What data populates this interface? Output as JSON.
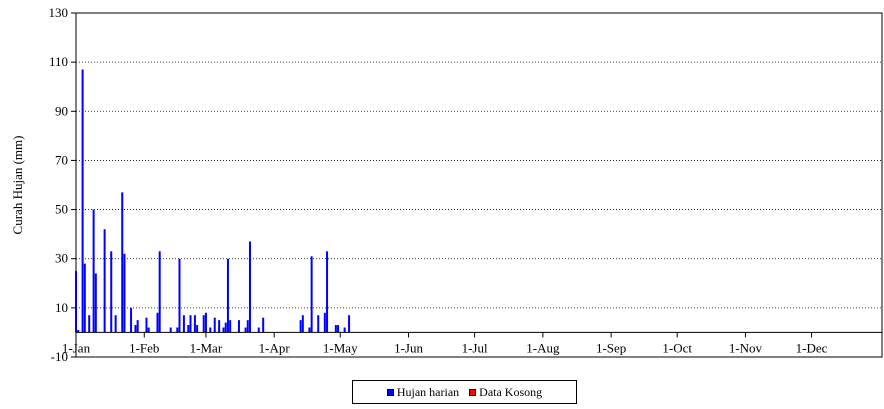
{
  "chart_data": {
    "type": "bar",
    "title": "",
    "xlabel": "",
    "ylabel": "Curah Hujan (mm)",
    "ylim": [
      -10,
      130
    ],
    "yticks": [
      -10,
      10,
      30,
      50,
      70,
      90,
      110,
      130
    ],
    "xlim_days": [
      1,
      366
    ],
    "xticks": [
      {
        "label": "1-Jan",
        "day": 1
      },
      {
        "label": "1-Feb",
        "day": 32
      },
      {
        "label": "1-Mar",
        "day": 60
      },
      {
        "label": "1-Apr",
        "day": 91
      },
      {
        "label": "1-May",
        "day": 121
      },
      {
        "label": "1-Jun",
        "day": 152
      },
      {
        "label": "1-Jul",
        "day": 182
      },
      {
        "label": "1-Aug",
        "day": 213
      },
      {
        "label": "1-Sep",
        "day": 244
      },
      {
        "label": "1-Oct",
        "day": 274
      },
      {
        "label": "1-Nov",
        "day": 305
      },
      {
        "label": "1-Dec",
        "day": 335
      }
    ],
    "grid": "horizontal-dotted",
    "legend_position": "bottom",
    "series": [
      {
        "name": "Hujan harian",
        "color": "#0000ff",
        "points": [
          {
            "day": 1,
            "value": 25
          },
          {
            "day": 2,
            "value": 1
          },
          {
            "day": 4,
            "value": 107
          },
          {
            "day": 5,
            "value": 28
          },
          {
            "day": 7,
            "value": 7
          },
          {
            "day": 9,
            "value": 50
          },
          {
            "day": 10,
            "value": 24
          },
          {
            "day": 14,
            "value": 42
          },
          {
            "day": 17,
            "value": 33
          },
          {
            "day": 19,
            "value": 7
          },
          {
            "day": 22,
            "value": 57
          },
          {
            "day": 23,
            "value": 32
          },
          {
            "day": 26,
            "value": 10
          },
          {
            "day": 28,
            "value": 3
          },
          {
            "day": 29,
            "value": 5
          },
          {
            "day": 33,
            "value": 6
          },
          {
            "day": 34,
            "value": 2
          },
          {
            "day": 38,
            "value": 8
          },
          {
            "day": 39,
            "value": 33
          },
          {
            "day": 44,
            "value": 2
          },
          {
            "day": 47,
            "value": 2
          },
          {
            "day": 48,
            "value": 30
          },
          {
            "day": 50,
            "value": 7
          },
          {
            "day": 52,
            "value": 3
          },
          {
            "day": 53,
            "value": 7
          },
          {
            "day": 55,
            "value": 7
          },
          {
            "day": 56,
            "value": 3
          },
          {
            "day": 59,
            "value": 7
          },
          {
            "day": 60,
            "value": 8
          },
          {
            "day": 62,
            "value": 2
          },
          {
            "day": 64,
            "value": 6
          },
          {
            "day": 66,
            "value": 5
          },
          {
            "day": 68,
            "value": 2
          },
          {
            "day": 69,
            "value": 4
          },
          {
            "day": 70,
            "value": 30
          },
          {
            "day": 71,
            "value": 5
          },
          {
            "day": 75,
            "value": 5
          },
          {
            "day": 78,
            "value": 2
          },
          {
            "day": 79,
            "value": 5
          },
          {
            "day": 80,
            "value": 37
          },
          {
            "day": 84,
            "value": 2
          },
          {
            "day": 86,
            "value": 6
          },
          {
            "day": 103,
            "value": 5
          },
          {
            "day": 104,
            "value": 7
          },
          {
            "day": 107,
            "value": 2
          },
          {
            "day": 108,
            "value": 31
          },
          {
            "day": 111,
            "value": 7
          },
          {
            "day": 114,
            "value": 8
          },
          {
            "day": 115,
            "value": 33
          },
          {
            "day": 119,
            "value": 3
          },
          {
            "day": 120,
            "value": 3
          },
          {
            "day": 123,
            "value": 2
          },
          {
            "day": 125,
            "value": 7
          }
        ]
      },
      {
        "name": "Data Kosong",
        "color": "#ff0000",
        "points": []
      }
    ]
  },
  "legend": {
    "items": [
      {
        "label": "Hujan harian",
        "color": "#0000ff"
      },
      {
        "label": "Data Kosong",
        "color": "#ff0000"
      }
    ]
  }
}
